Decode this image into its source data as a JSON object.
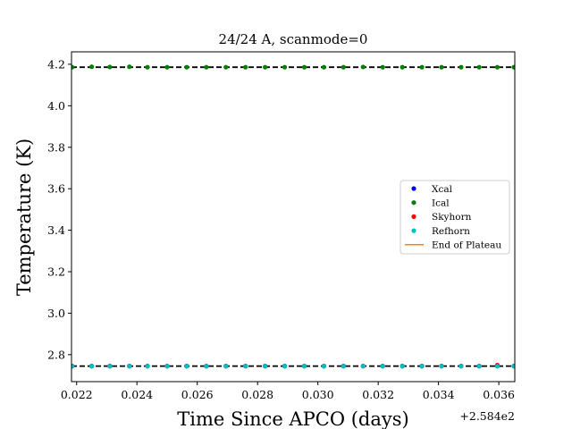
{
  "chart_data": {
    "type": "scatter",
    "title": "24/24 A, scanmode=0",
    "xlabel": "Time Since APCO (days)",
    "ylabel": "Temperature (K)",
    "x_offset_label": "+2.584e2",
    "xlim": [
      0.02183,
      0.03653
    ],
    "ylim": [
      2.67,
      4.26
    ],
    "x_ticks": [
      0.022,
      0.024,
      0.026,
      0.028,
      0.03,
      0.032,
      0.034,
      0.036
    ],
    "x_tick_labels": [
      "0.022",
      "0.024",
      "0.026",
      "0.028",
      "0.030",
      "0.032",
      "0.034",
      "0.036"
    ],
    "y_ticks": [
      2.8,
      3.0,
      3.2,
      3.4,
      3.6,
      3.8,
      4.0,
      4.2
    ],
    "y_tick_labels": [
      "2.8",
      "3.0",
      "3.2",
      "3.4",
      "3.6",
      "3.8",
      "4.0",
      "4.2"
    ],
    "grid": false,
    "legend_position": "center-right",
    "x": [
      0.02185,
      0.0225,
      0.0231,
      0.02375,
      0.02435,
      0.025,
      0.02565,
      0.0263,
      0.02695,
      0.0276,
      0.02825,
      0.0289,
      0.02955,
      0.0302,
      0.03085,
      0.0315,
      0.03215,
      0.0328,
      0.03345,
      0.0341,
      0.03475,
      0.03535,
      0.03595,
      0.0365
    ],
    "series": [
      {
        "name": "Xcal",
        "color": "#0000ff",
        "marker": "dot",
        "values": [
          2.745,
          2.745,
          2.745,
          2.745,
          2.745,
          2.745,
          2.745,
          2.745,
          2.745,
          2.745,
          2.745,
          2.745,
          2.745,
          2.745,
          2.745,
          2.745,
          2.745,
          2.745,
          2.745,
          2.745,
          2.745,
          2.745,
          2.745,
          2.745
        ]
      },
      {
        "name": "Ical",
        "color": "#008000",
        "marker": "dot",
        "values": [
          4.186,
          4.188,
          4.187,
          4.188,
          4.186,
          4.186,
          4.186,
          4.186,
          4.186,
          4.186,
          4.186,
          4.186,
          4.186,
          4.186,
          4.186,
          4.187,
          4.186,
          4.186,
          4.186,
          4.186,
          4.186,
          4.186,
          4.186,
          4.186
        ]
      },
      {
        "name": "Skyhorn",
        "color": "#ff0000",
        "marker": "dot",
        "values": [
          2.745,
          2.745,
          2.745,
          2.745,
          2.745,
          2.745,
          2.745,
          2.745,
          2.745,
          2.745,
          2.745,
          2.745,
          2.745,
          2.745,
          2.745,
          2.745,
          2.745,
          2.745,
          2.745,
          2.745,
          2.745,
          2.745,
          2.75,
          2.745
        ]
      },
      {
        "name": "Refhorn",
        "color": "#00bfbf",
        "marker": "dot",
        "values": [
          2.744,
          2.744,
          2.744,
          2.744,
          2.744,
          2.744,
          2.744,
          2.744,
          2.744,
          2.744,
          2.744,
          2.744,
          2.744,
          2.744,
          2.744,
          2.744,
          2.744,
          2.744,
          2.744,
          2.744,
          2.744,
          2.744,
          2.744,
          2.744
        ]
      },
      {
        "name": "End of Plateau",
        "color": "#ff7f0e",
        "marker": "line",
        "values": []
      }
    ],
    "reference_lines": [
      {
        "y": 4.186,
        "color": "#000000",
        "style": "dashed"
      },
      {
        "y": 2.745,
        "color": "#000000",
        "style": "dashed"
      }
    ]
  }
}
